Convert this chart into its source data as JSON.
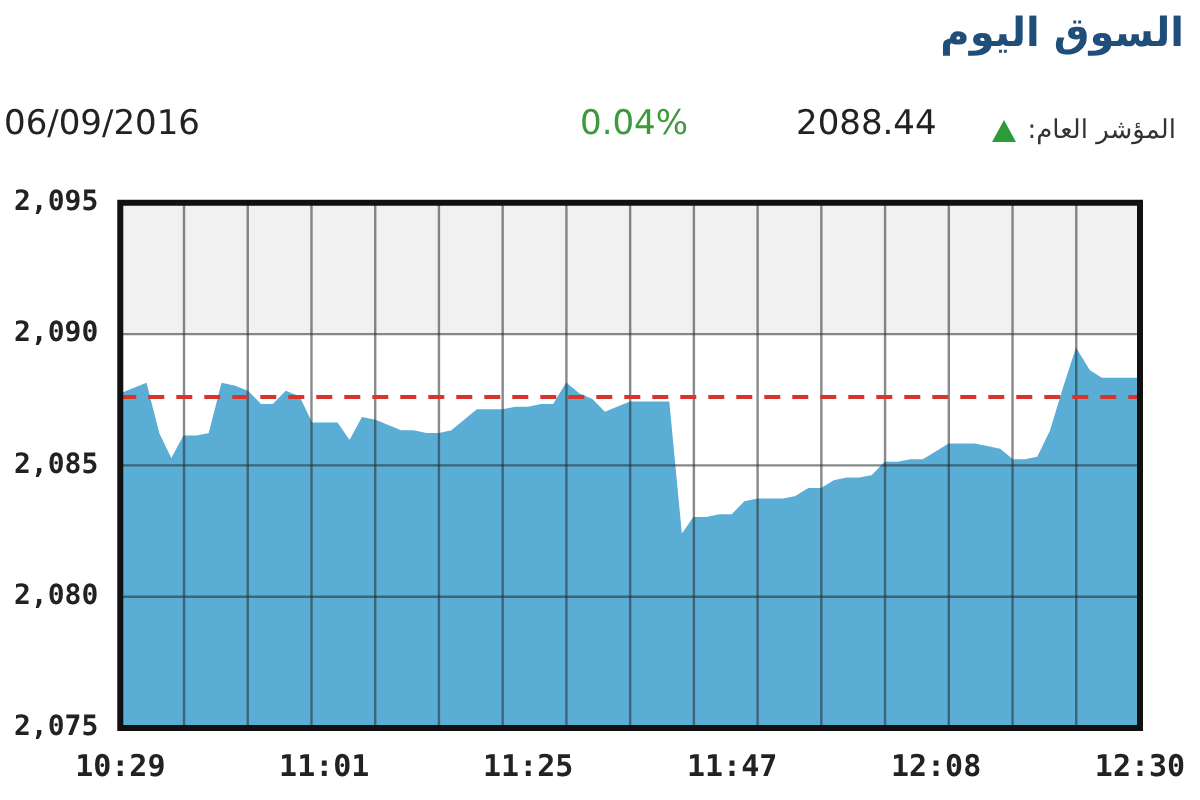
{
  "chart_data": {
    "type": "area",
    "title": "السوق اليوم",
    "annotations": [
      "المؤشر العام:",
      "2088.44",
      "0.04%",
      "06/09/2016"
    ],
    "categories": [
      "10:29",
      null,
      null,
      null,
      null,
      null,
      null,
      null,
      null,
      null,
      null,
      null,
      null,
      null,
      null,
      null,
      "11:01",
      null,
      null,
      null,
      null,
      null,
      null,
      null,
      null,
      null,
      null,
      null,
      null,
      null,
      null,
      null,
      "11:25",
      null,
      null,
      null,
      null,
      null,
      null,
      null,
      null,
      null,
      null,
      null,
      null,
      null,
      null,
      null,
      "11:47",
      null,
      null,
      null,
      null,
      null,
      null,
      null,
      null,
      null,
      null,
      null,
      null,
      null,
      null,
      null,
      "12:08",
      null,
      null,
      null,
      null,
      null,
      null,
      null,
      null,
      null,
      null,
      null,
      null,
      null,
      null,
      null,
      "12:30"
    ],
    "values": [
      2087.7,
      2087.9,
      2088.1,
      2086.2,
      2085.2,
      2086.1,
      2086.1,
      2086.2,
      2088.1,
      2088.0,
      2087.8,
      2087.3,
      2087.3,
      2087.8,
      2087.6,
      2086.6,
      2086.6,
      2086.6,
      2085.9,
      2086.8,
      2086.7,
      2086.5,
      2086.3,
      2086.3,
      2086.2,
      2086.2,
      2086.3,
      2086.7,
      2087.1,
      2087.1,
      2087.1,
      2087.2,
      2087.2,
      2087.3,
      2087.3,
      2088.1,
      2087.7,
      2087.5,
      2087.0,
      2087.2,
      2087.4,
      2087.4,
      2087.4,
      2087.4,
      2082.3,
      2083.0,
      2083.0,
      2083.1,
      2083.1,
      2083.6,
      2083.7,
      2083.7,
      2083.7,
      2083.8,
      2084.1,
      2084.1,
      2084.4,
      2084.5,
      2084.5,
      2084.6,
      2085.1,
      2085.1,
      2085.2,
      2085.2,
      2085.5,
      2085.8,
      2085.8,
      2085.8,
      2085.7,
      2085.6,
      2085.2,
      2085.2,
      2085.3,
      2086.3,
      2087.9,
      2089.4,
      2088.6,
      2088.3,
      2088.3,
      2088.3,
      2088.3
    ],
    "color": "#5aaed6",
    "ylim": [
      2075,
      2095
    ],
    "yticks": [
      {
        "value": 2075,
        "label": "2,075"
      },
      {
        "value": 2080,
        "label": "2,080"
      },
      {
        "value": 2085,
        "label": "2,085"
      },
      {
        "value": 2090,
        "label": "2,090"
      },
      {
        "value": 2095,
        "label": "2,095"
      }
    ],
    "ref_lines": [
      {
        "axis": "y",
        "value": 2087.6,
        "color": "#d9342b",
        "line_style": "dashed"
      }
    ],
    "bands": [
      {
        "axis": "y",
        "from": 2090,
        "to": 2095,
        "color": "#f1f1f1"
      }
    ],
    "grid": true,
    "marker": "none",
    "legend": false
  }
}
